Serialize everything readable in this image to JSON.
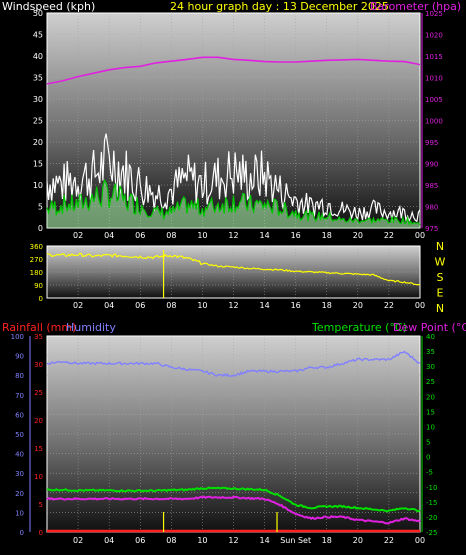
{
  "header": {
    "left": "Windspeed (kph)",
    "center": "24 hour graph day : 13 December 2025",
    "right": "Barometer (hpa)"
  },
  "colors": {
    "wind_avg": "#00c800",
    "wind_gust": "#ffffff",
    "wind_avg_fill": "#a8f0a8",
    "barometer": "#e020e0",
    "direction": "#ffff00",
    "rain": "#ff2020",
    "humidity": "#8080ff",
    "temperature": "#00e000",
    "dewpoint": "#e020e0"
  },
  "chart_data": [
    {
      "type": "line",
      "name": "wind-barometer",
      "x_ticks": [
        "02",
        "04",
        "06",
        "08",
        "10",
        "12",
        "14",
        "16",
        "18",
        "20",
        "22",
        "00"
      ],
      "left_axis": {
        "label": "Windspeed (kph)",
        "ylim": [
          0,
          50
        ],
        "ticks": [
          0,
          5,
          10,
          15,
          20,
          25,
          30,
          35,
          40,
          45,
          50
        ]
      },
      "right_axis": {
        "label": "Barometer (hpa)",
        "ylim": [
          975,
          1025
        ],
        "ticks": [
          975,
          980,
          985,
          990,
          995,
          1000,
          1005,
          1010,
          1015,
          1020,
          1025
        ]
      },
      "series": [
        {
          "name": "Barometer",
          "axis": "right",
          "x": [
            0.0,
            1,
            2,
            3,
            4,
            5,
            6,
            7,
            8,
            9,
            10,
            11,
            12,
            13,
            14,
            15,
            16,
            17,
            18,
            19,
            20,
            21,
            22,
            23,
            24
          ],
          "values": [
            1008.5,
            1009.2,
            1010.2,
            1011.0,
            1011.8,
            1012.3,
            1012.6,
            1013.4,
            1013.8,
            1014.2,
            1014.7,
            1014.7,
            1014.2,
            1014.0,
            1013.7,
            1013.6,
            1013.6,
            1013.8,
            1014.0,
            1014.1,
            1014.2,
            1014.0,
            1013.8,
            1013.7,
            1013.0
          ]
        },
        {
          "name": "Wind gust",
          "axis": "left",
          "x": [
            0.0,
            1,
            2,
            3,
            4,
            5,
            6,
            7,
            8,
            9,
            10,
            11,
            12,
            13,
            14,
            15,
            16,
            17,
            18,
            19,
            20,
            21,
            22,
            23,
            24
          ],
          "values": [
            15,
            14,
            16,
            17,
            22,
            18,
            14,
            11,
            12,
            16,
            14,
            16,
            18,
            16,
            17,
            12,
            9,
            7,
            8,
            6,
            5,
            6,
            5,
            5,
            4
          ]
        },
        {
          "name": "Wind average",
          "axis": "left",
          "x": [
            0.0,
            1,
            2,
            3,
            4,
            5,
            6,
            7,
            8,
            9,
            10,
            11,
            12,
            13,
            14,
            15,
            16,
            17,
            18,
            19,
            20,
            21,
            22,
            23,
            24
          ],
          "values": [
            5,
            6,
            6,
            8,
            9,
            7,
            6,
            4,
            4,
            6,
            5,
            6,
            7,
            6,
            6,
            5,
            4,
            3,
            3,
            2,
            2,
            2,
            2,
            2,
            1
          ]
        }
      ]
    },
    {
      "type": "line",
      "name": "wind-direction",
      "x_ticks": [
        "02",
        "04",
        "06",
        "08",
        "10",
        "12",
        "14",
        "16",
        "18",
        "20",
        "22",
        "00"
      ],
      "ylim": [
        0,
        360
      ],
      "y_ticks": [
        0,
        90,
        180,
        270,
        360
      ],
      "compass": [
        "N",
        "W",
        "S",
        "E",
        "N"
      ],
      "series": [
        {
          "name": "Direction",
          "x": [
            0.0,
            1,
            2,
            3,
            4,
            5,
            6,
            7,
            8,
            9,
            10,
            11,
            12,
            13,
            14,
            15,
            16,
            17,
            18,
            19,
            20,
            21,
            22,
            23,
            24
          ],
          "values": [
            300,
            295,
            300,
            290,
            295,
            292,
            285,
            282,
            295,
            275,
            240,
            220,
            215,
            205,
            200,
            195,
            185,
            180,
            175,
            170,
            165,
            160,
            120,
            110,
            90
          ]
        }
      ]
    },
    {
      "type": "line",
      "name": "rain-humidity-temperature",
      "x_ticks": [
        "02",
        "04",
        "06",
        "08",
        "10",
        "12",
        "14",
        "Sun Set",
        "18",
        "20",
        "22",
        "00"
      ],
      "left_axis": {
        "labels": [
          "Rainfall (mm)",
          "Humidity"
        ],
        "ylim": [
          0,
          100
        ],
        "ticks": [
          0,
          10,
          20,
          30,
          40,
          50,
          60,
          70,
          80,
          90,
          100
        ]
      },
      "rain_axis": {
        "ylim": [
          0,
          35
        ],
        "ticks": [
          0,
          5,
          10,
          15,
          20,
          25,
          30,
          35
        ]
      },
      "right_axis": {
        "labels": [
          "Temperature (°C)",
          "Dew Point (°C)"
        ],
        "ylim": [
          -25,
          40
        ],
        "ticks": [
          -25,
          -20,
          -15,
          -10,
          -5,
          0,
          5,
          10,
          15,
          20,
          25,
          30,
          35,
          40
        ]
      },
      "series": [
        {
          "name": "Humidity",
          "x": [
            0.0,
            1,
            2,
            3,
            4,
            5,
            6,
            7,
            8,
            9,
            10,
            11,
            12,
            13,
            14,
            15,
            16,
            17,
            18,
            19,
            20,
            21,
            22,
            23,
            24
          ],
          "values": [
            86,
            87,
            86,
            86,
            86,
            86,
            86,
            86,
            84,
            83,
            82,
            80,
            80,
            82,
            82,
            82,
            82,
            84,
            84,
            86,
            88,
            88,
            88,
            92,
            86
          ]
        },
        {
          "name": "Temperature",
          "x": [
            0.0,
            1,
            2,
            3,
            4,
            5,
            6,
            7,
            8,
            9,
            10,
            11,
            12,
            13,
            14,
            15,
            16,
            17,
            18,
            19,
            20,
            21,
            22,
            23,
            24
          ],
          "values": [
            -11,
            -11,
            -11.2,
            -11.2,
            -11.2,
            -11.3,
            -11.3,
            -11.3,
            -11.1,
            -11,
            -10.5,
            -10.5,
            -10.6,
            -10.8,
            -11,
            -13,
            -16,
            -17,
            -16.5,
            -16.5,
            -17,
            -17.5,
            -18,
            -17,
            -18
          ]
        },
        {
          "name": "Dew Point",
          "x": [
            0.0,
            1,
            2,
            3,
            4,
            5,
            6,
            7,
            8,
            9,
            10,
            11,
            12,
            13,
            14,
            15,
            16,
            17,
            18,
            19,
            20,
            21,
            22,
            23,
            24
          ],
          "values": [
            -14,
            -14,
            -14,
            -14,
            -14,
            -14,
            -14,
            -14,
            -14,
            -14,
            -13.5,
            -13.5,
            -13.5,
            -13.8,
            -14,
            -16,
            -19,
            -20.5,
            -20,
            -20,
            -21,
            -21.5,
            -22,
            -20.5,
            -21.5
          ]
        },
        {
          "name": "Rainfall",
          "x": [
            0,
            24
          ],
          "values": [
            0,
            0
          ]
        }
      ]
    }
  ],
  "bottom_labels": {
    "rainfall": "Rainfall (mm)",
    "humidity": "Humidity",
    "temperature": "Temperature (°C)",
    "dewpoint": "Dew Point (°C)"
  }
}
